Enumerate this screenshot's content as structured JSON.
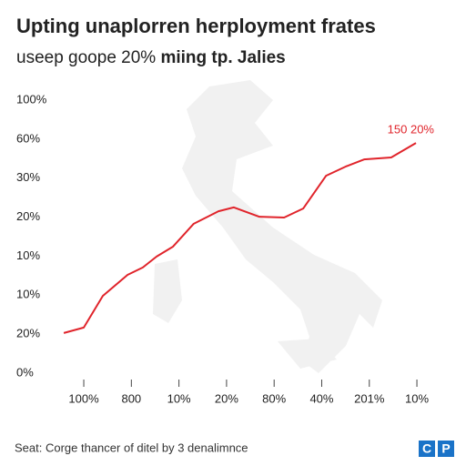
{
  "chart_data": {
    "type": "line",
    "title": "Upting unaplorren herployment frates",
    "subtitle": "useep goope 20%",
    "subtitle_bold": "miing tp. Jalies",
    "annotation": "150 20%",
    "source": "Seat: Corge thancer of ditel by 3 denalimnce",
    "logo": [
      "C",
      "P"
    ],
    "xlim": [
      0.5,
      8.5
    ],
    "xticks": [
      {
        "value": 1,
        "label": "100%"
      },
      {
        "value": 2,
        "label": "800"
      },
      {
        "value": 3,
        "label": "10%"
      },
      {
        "value": 4,
        "label": "20%"
      },
      {
        "value": 5,
        "label": "80%"
      },
      {
        "value": 6,
        "label": "40%"
      },
      {
        "value": 7,
        "label": "201%"
      },
      {
        "value": 8,
        "label": "10%"
      }
    ],
    "ylim": [
      0,
      7
    ],
    "yticks": [
      {
        "value": 0,
        "label": "0%"
      },
      {
        "value": 1,
        "label": "20%"
      },
      {
        "value": 2,
        "label": "10%"
      },
      {
        "value": 3,
        "label": "10%"
      },
      {
        "value": 4,
        "label": "20%"
      },
      {
        "value": 5,
        "label": "30%"
      },
      {
        "value": 6,
        "label": "60%"
      },
      {
        "value": 7,
        "label": "100%"
      }
    ],
    "series": [
      {
        "color": "#e0242b",
        "x": [
          0.58,
          1,
          1.4,
          1.92,
          2.24,
          2.53,
          2.87,
          3.31,
          3.83,
          4.15,
          4.69,
          5.21,
          5.61,
          6.09,
          6.51,
          6.89,
          7.46,
          7.98
        ],
        "values": [
          1.03,
          1.17,
          1.98,
          2.52,
          2.71,
          2.99,
          3.24,
          3.83,
          4.15,
          4.25,
          4.01,
          3.99,
          4.22,
          5.06,
          5.3,
          5.48,
          5.53,
          5.9
        ]
      }
    ]
  }
}
